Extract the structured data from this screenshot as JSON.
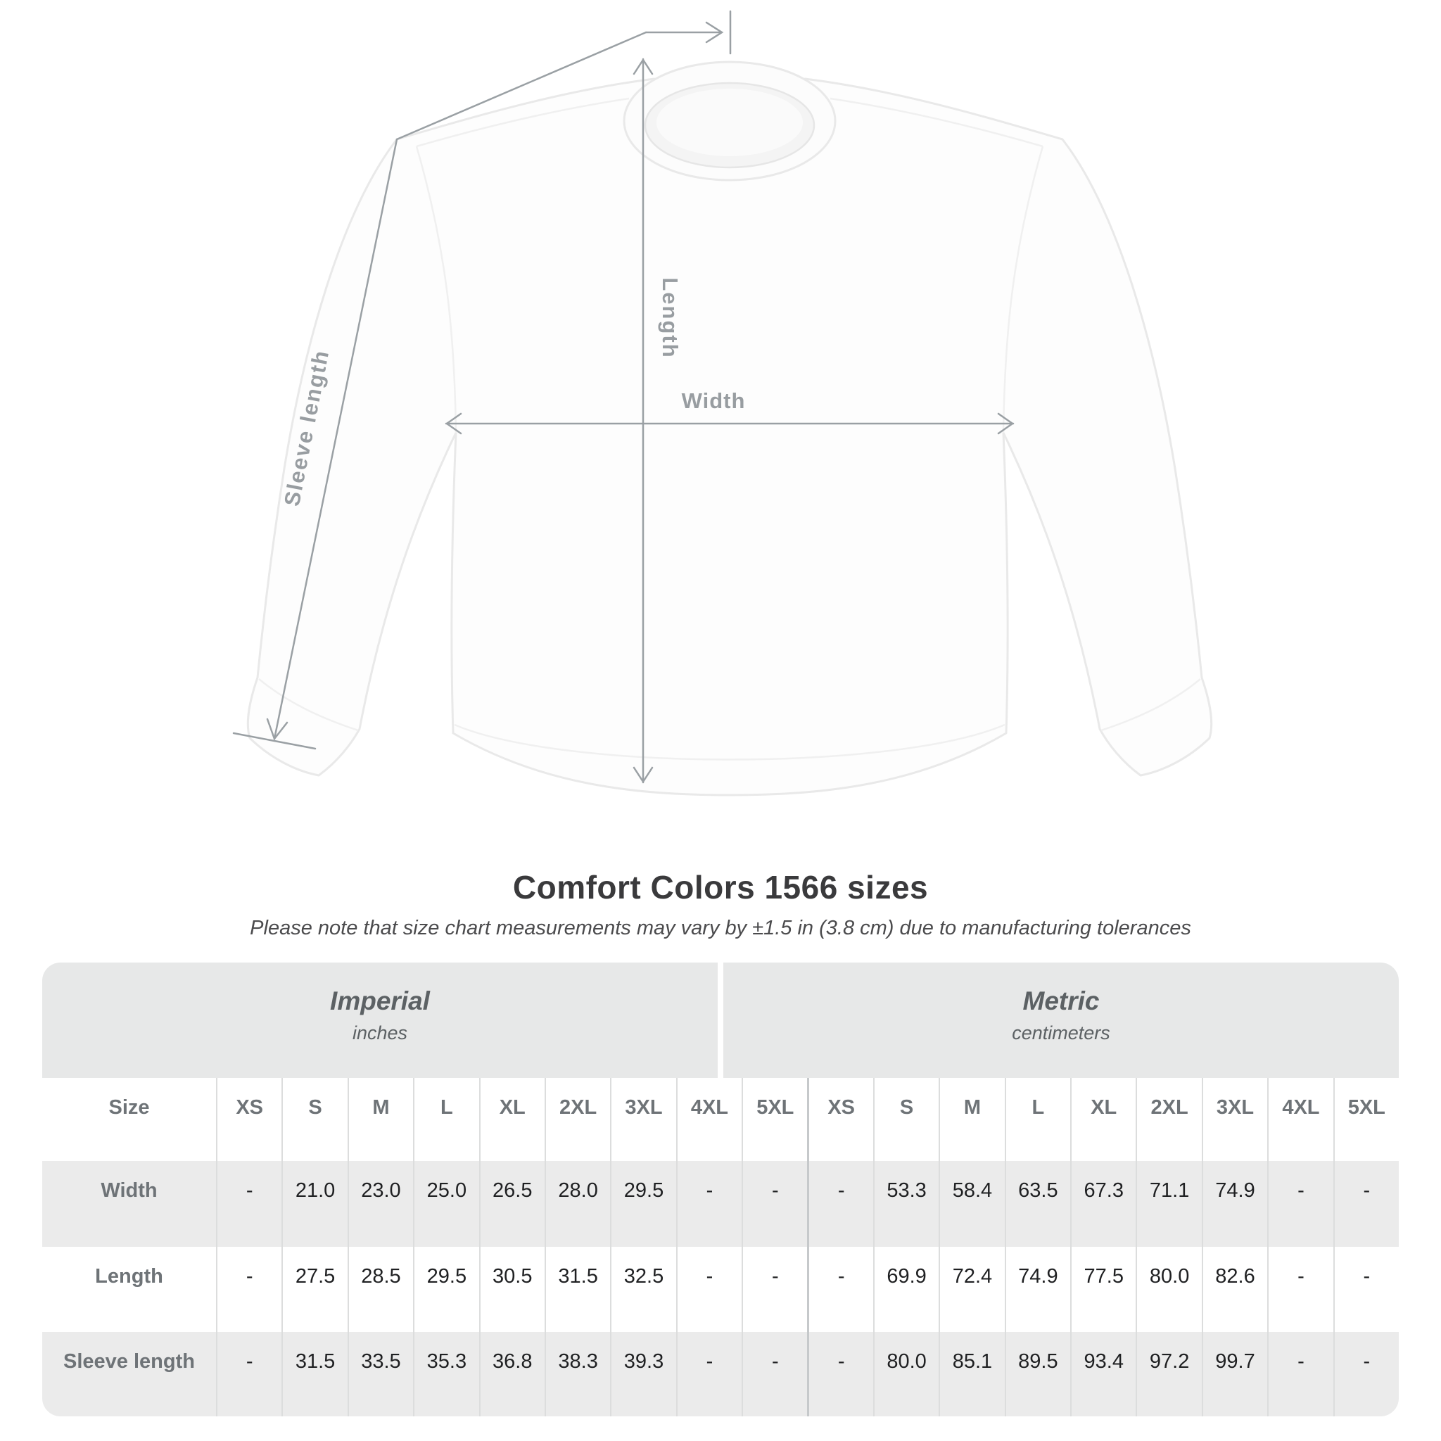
{
  "title": "Comfort Colors 1566 sizes",
  "subtitle": "Please note that size chart measurements may vary by ±1.5 in (3.8 cm) due to manufacturing tolerances",
  "diagram": {
    "width_label": "Width",
    "length_label": "Length",
    "sleeve_label": "Sleeve length"
  },
  "colors": {
    "measurement_line": "#9aa0a4",
    "measurement_text": "#989da1",
    "table_header_bg": "#e7e8e8",
    "row_alt_bg": "#ebebeb",
    "value_text": "#1f2022",
    "label_text": "#6e7377",
    "title_text": "#3a3a3c"
  },
  "chart_data": {
    "type": "table",
    "title": "Comfort Colors 1566 sizes",
    "note": "Please note that size chart measurements may vary by ±1.5 in (3.8 cm) due to manufacturing tolerances",
    "column_groups": [
      {
        "name": "Imperial",
        "unit": "inches"
      },
      {
        "name": "Metric",
        "unit": "centimeters"
      }
    ],
    "size_column_header": "Size",
    "sizes": [
      "XS",
      "S",
      "M",
      "L",
      "XL",
      "2XL",
      "3XL",
      "4XL",
      "5XL"
    ],
    "rows": [
      {
        "label": "Width",
        "imperial": [
          "-",
          "21.0",
          "23.0",
          "25.0",
          "26.5",
          "28.0",
          "29.5",
          "-",
          "-"
        ],
        "metric": [
          "-",
          "53.3",
          "58.4",
          "63.5",
          "67.3",
          "71.1",
          "74.9",
          "-",
          "-"
        ]
      },
      {
        "label": "Length",
        "imperial": [
          "-",
          "27.5",
          "28.5",
          "29.5",
          "30.5",
          "31.5",
          "32.5",
          "-",
          "-"
        ],
        "metric": [
          "-",
          "69.9",
          "72.4",
          "74.9",
          "77.5",
          "80.0",
          "82.6",
          "-",
          "-"
        ]
      },
      {
        "label": "Sleeve length",
        "imperial": [
          "-",
          "31.5",
          "33.5",
          "35.3",
          "36.8",
          "38.3",
          "39.3",
          "-",
          "-"
        ],
        "metric": [
          "-",
          "80.0",
          "85.1",
          "89.5",
          "93.4",
          "97.2",
          "99.7",
          "-",
          "-"
        ]
      }
    ]
  }
}
